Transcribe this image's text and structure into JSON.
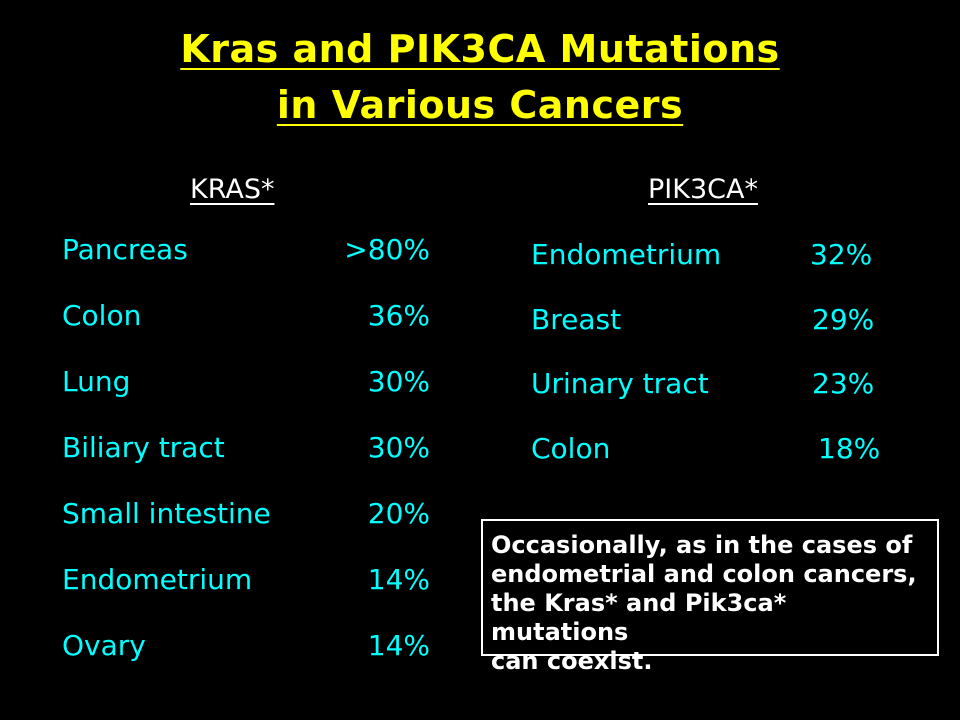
{
  "title": {
    "line1": "Kras and PIK3CA Mutations",
    "line2": "in Various Cancers"
  },
  "kras": {
    "header": "KRAS*",
    "rows": [
      {
        "label": "Pancreas",
        "value": ">80%"
      },
      {
        "label": "Colon",
        "value": "36%"
      },
      {
        "label": "Lung",
        "value": "30%"
      },
      {
        "label": "Biliary tract",
        "value": "30%"
      },
      {
        "label": "Small intestine",
        "value": "20%"
      },
      {
        "label": "Endometrium",
        "value": "14%"
      },
      {
        "label": "Ovary",
        "value": "14%"
      }
    ]
  },
  "pik3ca": {
    "header": "PIK3CA*",
    "rows": [
      {
        "label": "Endometrium",
        "value": "32%"
      },
      {
        "label": "Breast",
        "value": "29%"
      },
      {
        "label": "Urinary tract",
        "value": "23%"
      },
      {
        "label": "Colon",
        "value": "18%"
      }
    ]
  },
  "note": {
    "text": "Occasionally, as in the cases of\nendometrial and colon cancers,\nthe Kras* and Pik3ca* mutations\ncan coexist."
  },
  "colors": {
    "background": "#000000",
    "title": "#FFFF00",
    "header": "#FFFFFF",
    "rows": "#00FFFF",
    "note": "#FFFFFF"
  }
}
